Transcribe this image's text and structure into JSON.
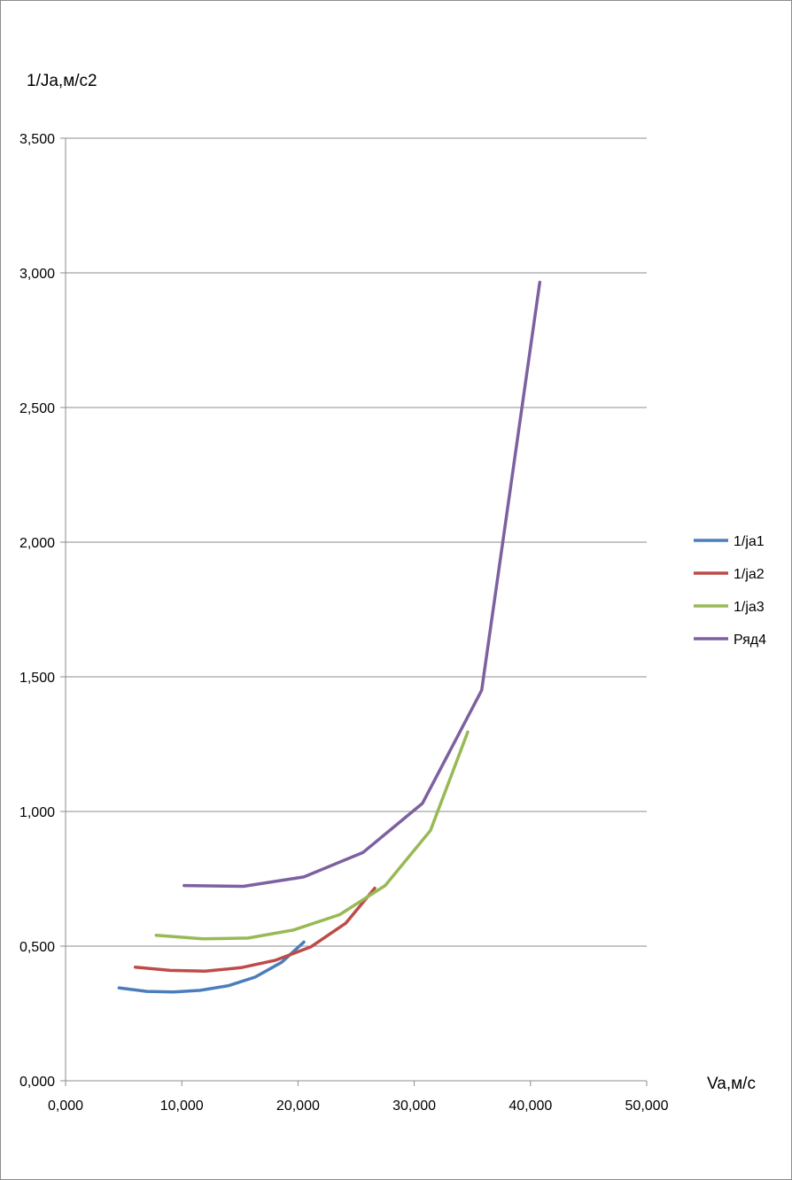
{
  "chart_data": {
    "type": "line",
    "ylabel": "1/Ja,м/с2",
    "xlabel": "Va,м/с",
    "xlim": [
      0,
      50
    ],
    "ylim": [
      0,
      3.5
    ],
    "x_ticks": [
      "0,000",
      "10,000",
      "20,000",
      "30,000",
      "40,000",
      "50,000"
    ],
    "y_ticks": [
      "0,000",
      "0,500",
      "1,000",
      "1,500",
      "2,000",
      "2,500",
      "3,000",
      "3,500"
    ],
    "grid": "horizontal",
    "legend_position": "right",
    "series": [
      {
        "name": "1/ja1",
        "color": "#4a7ebb",
        "x": [
          4.6,
          7.0,
          9.3,
          11.6,
          14.0,
          16.3,
          18.6,
          20.5
        ],
        "y": [
          0.345,
          0.332,
          0.33,
          0.336,
          0.353,
          0.385,
          0.44,
          0.515
        ]
      },
      {
        "name": "1/ja2",
        "color": "#be4b48",
        "x": [
          6.0,
          9.0,
          12.0,
          15.1,
          18.1,
          21.1,
          24.1,
          26.6
        ],
        "y": [
          0.422,
          0.41,
          0.407,
          0.42,
          0.448,
          0.497,
          0.585,
          0.715
        ]
      },
      {
        "name": "1/ja3",
        "color": "#98b954",
        "x": [
          7.8,
          11.8,
          15.7,
          19.6,
          23.6,
          27.5,
          31.4,
          34.6
        ],
        "y": [
          0.54,
          0.527,
          0.53,
          0.56,
          0.617,
          0.725,
          0.93,
          1.295
        ]
      },
      {
        "name": "Ряд4",
        "color": "#7d60a0",
        "x": [
          10.2,
          15.3,
          20.5,
          25.6,
          30.7,
          35.8,
          40.8
        ],
        "y": [
          0.725,
          0.722,
          0.757,
          0.848,
          1.03,
          1.45,
          2.965
        ]
      }
    ]
  }
}
